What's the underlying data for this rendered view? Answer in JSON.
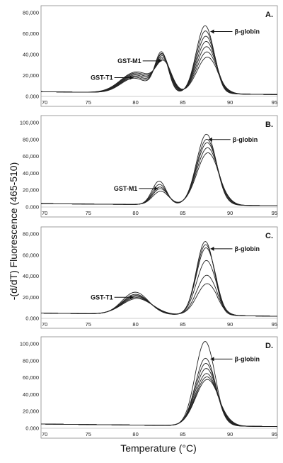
{
  "figure": {
    "ylabel": "-(d/dT) Fluorescence (465-510)",
    "xlabel": "Temperature (°C)"
  },
  "chart_data": [
    {
      "type": "line",
      "panel": "A.",
      "xlim": [
        70,
        95
      ],
      "ylim": [
        0,
        80000
      ],
      "xticks": [
        "70",
        "75",
        "80",
        "85",
        "90",
        "95"
      ],
      "yticks": [
        "0.000",
        "20,000",
        "40,000",
        "60,000",
        "80,000"
      ],
      "annotations": [
        {
          "text": "GST-M1",
          "x": 83,
          "y": 34000
        },
        {
          "text": "GST-T1",
          "x": 80,
          "y": 18000
        },
        {
          "text": "β-globin",
          "x": 87.7,
          "y": 62000
        }
      ],
      "peaks": {
        "T1": {
          "center": 80.0,
          "width": 1.4,
          "heights": [
            14000,
            15000,
            16000,
            17000,
            18000,
            19000,
            20000
          ]
        },
        "M1": {
          "center": 82.9,
          "width": 0.7,
          "heights": [
            38000,
            36000,
            35000,
            33000,
            31000,
            29000,
            27000
          ]
        },
        "B": {
          "center": 87.5,
          "width": 0.95,
          "heights": [
            65000,
            60000,
            55000,
            50000,
            45000,
            40000,
            35000
          ]
        }
      },
      "baseline": 4500
    },
    {
      "type": "line",
      "panel": "B.",
      "xlim": [
        70,
        95
      ],
      "ylim": [
        0,
        100000
      ],
      "xticks": [
        "70",
        "75",
        "80",
        "85",
        "90",
        "95"
      ],
      "yticks": [
        "0.000",
        "20,000",
        "40,000",
        "60,000",
        "80,000",
        "100,000"
      ],
      "annotations": [
        {
          "text": "GST-M1",
          "x": 82.6,
          "y": 22000
        },
        {
          "text": "β-globin",
          "x": 87.5,
          "y": 80000
        }
      ],
      "peaks": {
        "M1": {
          "center": 82.6,
          "width": 0.75,
          "heights": [
            28000,
            24000,
            21000,
            19000,
            16000
          ]
        },
        "B": {
          "center": 87.6,
          "width": 1.05,
          "heights": [
            84000,
            78000,
            74000,
            68000,
            62000
          ]
        }
      },
      "baseline": 4000
    },
    {
      "type": "line",
      "panel": "C.",
      "xlim": [
        70,
        95
      ],
      "ylim": [
        0,
        80000
      ],
      "xticks": [
        "70",
        "75",
        "80",
        "85",
        "90",
        "95"
      ],
      "yticks": [
        "0.000",
        "20,000",
        "40,000",
        "60,000",
        "80,000"
      ],
      "annotations": [
        {
          "text": "GST-T1",
          "x": 80,
          "y": 20000
        },
        {
          "text": "β-globin",
          "x": 87.7,
          "y": 66000
        }
      ],
      "peaks": {
        "T1": {
          "center": 80.1,
          "width": 1.4,
          "heights": [
            21000,
            19000,
            18000,
            17000,
            16000,
            15000
          ]
        },
        "B": {
          "center": 87.5,
          "width": 0.95,
          "heights": [
            70000,
            67000,
            64000,
            52000,
            38000,
            30000
          ]
        }
      },
      "baseline": 5000
    },
    {
      "type": "line",
      "panel": "D.",
      "xlim": [
        70,
        95
      ],
      "ylim": [
        0,
        100000
      ],
      "xticks": [
        "70",
        "75",
        "80",
        "85",
        "90",
        "95"
      ],
      "yticks": [
        "0.000",
        "20,000",
        "40,000",
        "60,000",
        "80,000",
        "100,000"
      ],
      "annotations": [
        {
          "text": "β-globin",
          "x": 87.7,
          "y": 82000
        }
      ],
      "peaks": {
        "B": {
          "center": 87.5,
          "width": 1.05,
          "heights": [
            100000,
            80000,
            74000,
            68000,
            62000,
            58000,
            55000
          ]
        }
      },
      "baseline": 5000
    }
  ]
}
